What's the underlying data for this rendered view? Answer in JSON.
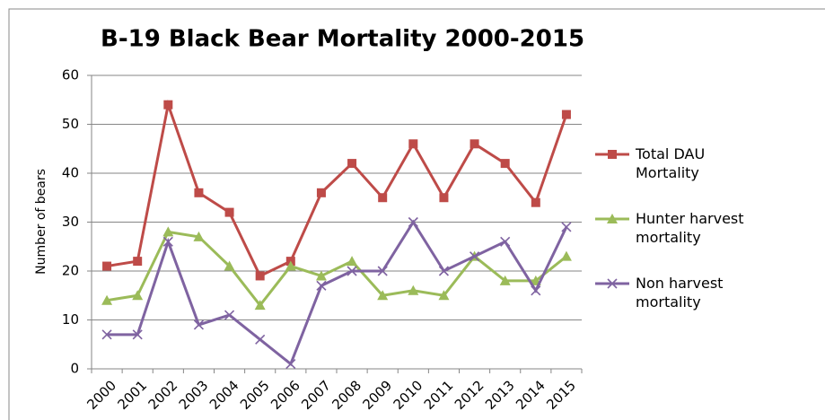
{
  "chart_data": {
    "type": "line",
    "title": "B-19 Black Bear Mortality 2000-2015",
    "y_label": "Number of bears",
    "categories": [
      "2000",
      "2001",
      "2002",
      "2003",
      "2004",
      "2005",
      "2006",
      "2007",
      "2008",
      "2009",
      "2010",
      "2011",
      "2012",
      "2013",
      "2014",
      "2015"
    ],
    "series": [
      {
        "name": "Total DAU Mortality",
        "color": "#be4b48",
        "marker": "square",
        "values": [
          21,
          22,
          54,
          36,
          32,
          19,
          22,
          36,
          42,
          35,
          46,
          35,
          46,
          42,
          34,
          52
        ]
      },
      {
        "name": "Hunter harvest mortality",
        "color": "#9bbb59",
        "marker": "triangle",
        "values": [
          14,
          15,
          28,
          27,
          21,
          13,
          21,
          19,
          22,
          15,
          16,
          15,
          23,
          18,
          18,
          23
        ]
      },
      {
        "name": "Non harvest mortality",
        "color": "#7f63a1",
        "marker": "x",
        "values": [
          7,
          7,
          26,
          9,
          11,
          6,
          1,
          17,
          20,
          20,
          30,
          20,
          23,
          26,
          16,
          29
        ]
      }
    ],
    "ylim": [
      0,
      60
    ],
    "yticks": [
      0,
      10,
      20,
      30,
      40,
      50,
      60
    ],
    "grid": true,
    "legend": "right"
  }
}
